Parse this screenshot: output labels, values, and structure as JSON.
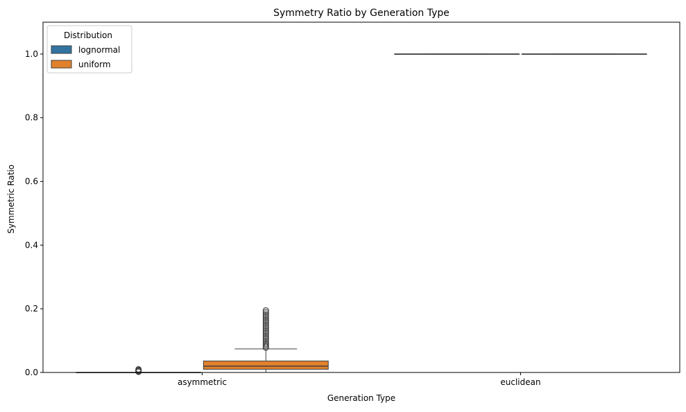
{
  "chart_data": {
    "type": "box",
    "title": "Symmetry Ratio by Generation Type",
    "xlabel": "Generation Type",
    "ylabel": "Symmetric Ratio",
    "categories": [
      "asymmetric",
      "euclidean"
    ],
    "ylim": [
      0.0,
      1.1
    ],
    "yticks": [
      "0.0",
      "0.2",
      "0.4",
      "0.6",
      "0.8",
      "1.0"
    ],
    "grid": false,
    "legend": {
      "title": "Distribution",
      "placement": "top-left",
      "entries": [
        "lognormal",
        "uniform"
      ]
    },
    "series": [
      {
        "name": "lognormal",
        "color": "#3274a1",
        "boxes": [
          {
            "category": "asymmetric",
            "min": 0.0,
            "q1": 0.0,
            "median": 0.0,
            "q3": 0.0,
            "max": 0.0,
            "outliers": [
              0.002,
              0.004,
              0.006,
              0.008,
              0.01
            ]
          },
          {
            "category": "euclidean",
            "min": 1.0,
            "q1": 1.0,
            "median": 1.0,
            "q3": 1.0,
            "max": 1.0,
            "outliers": []
          }
        ]
      },
      {
        "name": "uniform",
        "color": "#e1812c",
        "boxes": [
          {
            "category": "asymmetric",
            "min": 0.0,
            "q1": 0.01,
            "median": 0.02,
            "q3": 0.036,
            "max": 0.074,
            "outliers": [
              0.078,
              0.082,
              0.086,
              0.09,
              0.095,
              0.1,
              0.105,
              0.11,
              0.115,
              0.12,
              0.125,
              0.13,
              0.135,
              0.14,
              0.145,
              0.15,
              0.155,
              0.16,
              0.165,
              0.17,
              0.175,
              0.18,
              0.185,
              0.19,
              0.195
            ]
          },
          {
            "category": "euclidean",
            "min": 1.0,
            "q1": 1.0,
            "median": 1.0,
            "q3": 1.0,
            "max": 1.0,
            "outliers": []
          }
        ]
      }
    ]
  }
}
